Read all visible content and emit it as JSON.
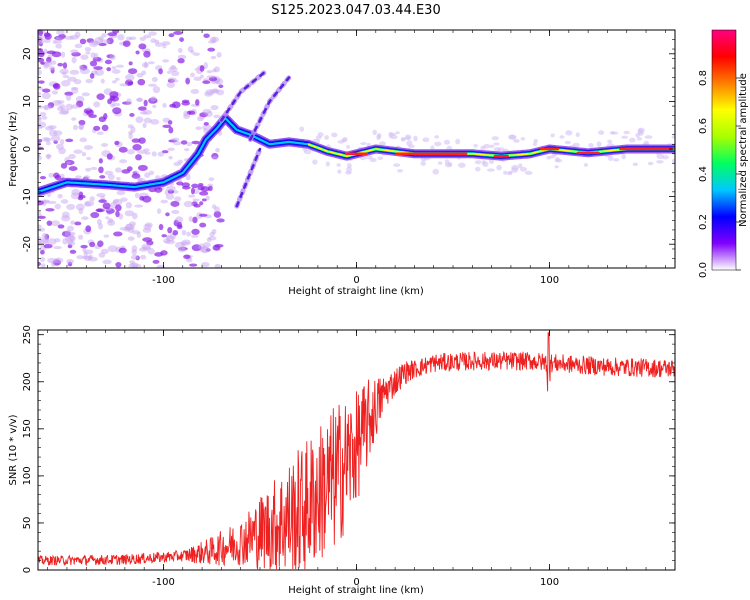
{
  "figure_title": "S125.2023.047.03.44.E30",
  "colorbar": {
    "label": "Normalized spectral amplitude",
    "ticks": [
      "0.0",
      "0.2",
      "0.4",
      "0.6",
      "0.8"
    ],
    "tick_values": [
      0.0,
      0.2,
      0.4,
      0.6,
      0.8
    ],
    "range": [
      0,
      1
    ],
    "colormap": [
      "#ffffff",
      "#8000ff",
      "#0000ff",
      "#00c8ff",
      "#00ff60",
      "#a8ff00",
      "#ffff00",
      "#ff7f00",
      "#ff0000",
      "#ff0080"
    ]
  },
  "chart_data": [
    {
      "type": "heatmap",
      "title": "",
      "xlabel": "Height of straight line (km)",
      "ylabel": "Frequency (Hz)",
      "xlim": [
        -165,
        165
      ],
      "ylim": [
        -25,
        25
      ],
      "x_ticks": [
        -100,
        0,
        100
      ],
      "y_ticks": [
        -20,
        -10,
        0,
        10,
        20
      ],
      "x_tick_labels": [
        "-100",
        "0",
        "100"
      ],
      "y_tick_labels": [
        "-20",
        "-10",
        "0",
        "10",
        "20"
      ],
      "ridge": [
        {
          "x": -165,
          "y": -9
        },
        {
          "x": -150,
          "y": -7
        },
        {
          "x": -130,
          "y": -7.5
        },
        {
          "x": -115,
          "y": -8
        },
        {
          "x": -100,
          "y": -7
        },
        {
          "x": -90,
          "y": -5
        },
        {
          "x": -82,
          "y": -1
        },
        {
          "x": -78,
          "y": 2
        },
        {
          "x": -72,
          "y": 4.5
        },
        {
          "x": -68,
          "y": 6.5
        },
        {
          "x": -62,
          "y": 4
        },
        {
          "x": -55,
          "y": 3
        },
        {
          "x": -45,
          "y": 1
        },
        {
          "x": -35,
          "y": 1.5
        },
        {
          "x": -25,
          "y": 1
        },
        {
          "x": -15,
          "y": -0.5
        },
        {
          "x": -5,
          "y": -1.5
        },
        {
          "x": 10,
          "y": 0
        },
        {
          "x": 30,
          "y": -1
        },
        {
          "x": 60,
          "y": -1
        },
        {
          "x": 75,
          "y": -1.5
        },
        {
          "x": 90,
          "y": -1
        },
        {
          "x": 100,
          "y": 0
        },
        {
          "x": 120,
          "y": -0.8
        },
        {
          "x": 140,
          "y": 0
        },
        {
          "x": 165,
          "y": 0
        }
      ],
      "branches": [
        {
          "points": [
            {
              "x": -70,
              "y": 6
            },
            {
              "x": -60,
              "y": 12
            },
            {
              "x": -48,
              "y": 16
            }
          ]
        },
        {
          "points": [
            {
              "x": -55,
              "y": 2
            },
            {
              "x": -45,
              "y": 10
            },
            {
              "x": -35,
              "y": 15
            }
          ]
        },
        {
          "points": [
            {
              "x": -62,
              "y": -12
            },
            {
              "x": -55,
              "y": -5
            },
            {
              "x": -50,
              "y": 0
            }
          ]
        }
      ]
    },
    {
      "type": "line",
      "title": "",
      "xlabel": "Height of straight line (km)",
      "ylabel": "SNR (10 * v/v)",
      "xlim": [
        -165,
        165
      ],
      "ylim": [
        0,
        255
      ],
      "x_ticks": [
        -100,
        0,
        100
      ],
      "y_ticks": [
        0,
        50,
        100,
        150,
        200,
        250
      ],
      "x_tick_labels": [
        "-100",
        "0",
        "100"
      ],
      "y_tick_labels": [
        "0",
        "50",
        "100",
        "150",
        "200",
        "250"
      ],
      "color": "#ee2020",
      "trend": [
        {
          "x": -165,
          "y": 10
        },
        {
          "x": -120,
          "y": 11
        },
        {
          "x": -90,
          "y": 15
        },
        {
          "x": -75,
          "y": 20
        },
        {
          "x": -60,
          "y": 30
        },
        {
          "x": -45,
          "y": 45
        },
        {
          "x": -30,
          "y": 60
        },
        {
          "x": -20,
          "y": 80
        },
        {
          "x": -10,
          "y": 100
        },
        {
          "x": 0,
          "y": 130
        },
        {
          "x": 8,
          "y": 165
        },
        {
          "x": 15,
          "y": 190
        },
        {
          "x": 25,
          "y": 210
        },
        {
          "x": 40,
          "y": 220
        },
        {
          "x": 60,
          "y": 222
        },
        {
          "x": 90,
          "y": 222
        },
        {
          "x": 100,
          "y": 220
        },
        {
          "x": 130,
          "y": 216
        },
        {
          "x": 165,
          "y": 214
        }
      ],
      "noise": [
        {
          "x": -165,
          "y": 5
        },
        {
          "x": -90,
          "y": 6
        },
        {
          "x": -60,
          "y": 25
        },
        {
          "x": -30,
          "y": 70
        },
        {
          "x": -10,
          "y": 80
        },
        {
          "x": 5,
          "y": 50
        },
        {
          "x": 15,
          "y": 18
        },
        {
          "x": 30,
          "y": 10
        },
        {
          "x": 165,
          "y": 10
        }
      ]
    }
  ]
}
